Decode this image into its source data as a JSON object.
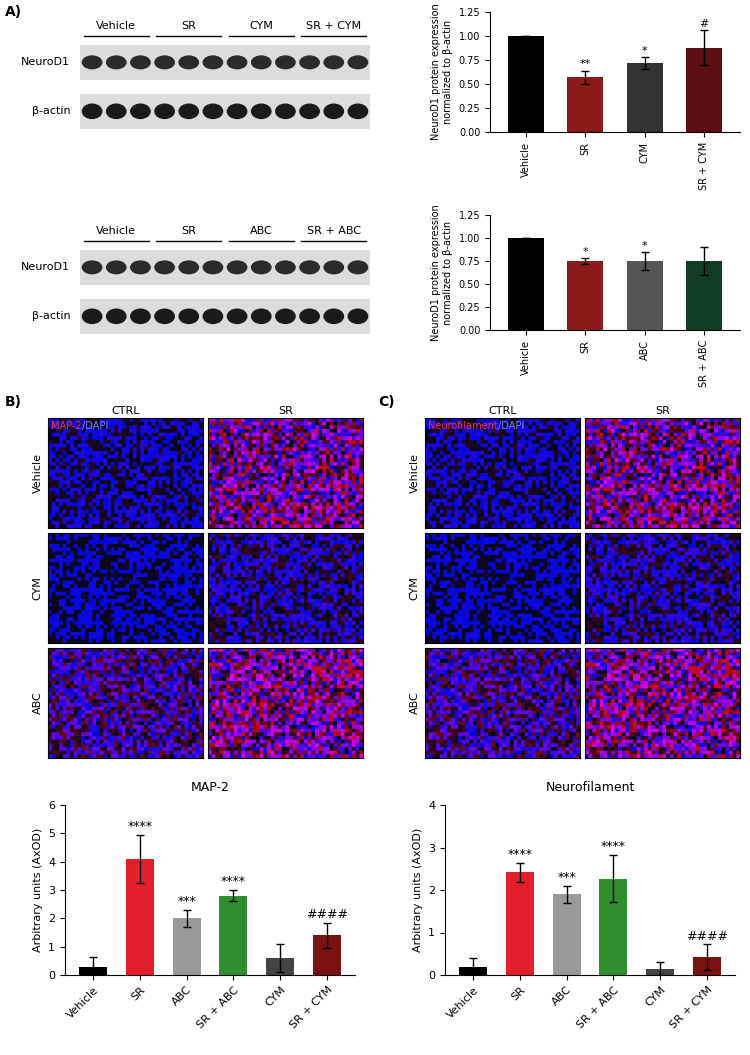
{
  "panels": {
    "A": {
      "label": "A)",
      "blots": [
        {
          "groups": [
            "Vehicle",
            "SR",
            "CYM",
            "SR + CYM"
          ],
          "rows": [
            "NeuroD1",
            "β-actin"
          ]
        },
        {
          "groups": [
            "Vehicle",
            "SR",
            "ABC",
            "SR + ABC"
          ],
          "rows": [
            "NeuroD1",
            "β-actin"
          ]
        }
      ]
    },
    "B": {
      "label": "B)",
      "stain": [
        "MAP-2",
        "/DAPI"
      ],
      "columns": [
        "CTRL",
        "SR"
      ],
      "rows": [
        "Vehicle",
        "CYM",
        "ABC"
      ]
    },
    "C": {
      "label": "C)",
      "stain": [
        "Neurofilament",
        "/DAPI"
      ],
      "columns": [
        "CTRL",
        "SR"
      ],
      "rows": [
        "Vehicle",
        "CYM",
        "ABC"
      ]
    }
  },
  "chart_data": [
    {
      "type": "bar",
      "ylabel": "NeuroD1 protein expression\nnormalized to β-actin",
      "categories": [
        "Vehicle",
        "SR",
        "CYM",
        "SR + CYM"
      ],
      "values": [
        1.0,
        0.57,
        0.72,
        0.88
      ],
      "errors": [
        0,
        0.07,
        0.06,
        0.18
      ],
      "colors": [
        "#000000",
        "#8b1a1a",
        "#333333",
        "#5c0f12"
      ],
      "annotations": [
        null,
        "**",
        "*",
        "#"
      ],
      "ylim": [
        0,
        1.25
      ],
      "yticks": [
        {
          "value": 0,
          "label": "0.00"
        },
        {
          "value": 0.25,
          "label": "0.25"
        },
        {
          "value": 0.5,
          "label": "0.50"
        },
        {
          "value": 0.75,
          "label": "0.75"
        },
        {
          "value": 1.0,
          "label": "1.00"
        },
        {
          "value": 1.25,
          "label": "1.25"
        }
      ]
    },
    {
      "type": "bar",
      "ylabel": "NeuroD1 protein expression\nnormalized to β-actin",
      "categories": [
        "Vehicle",
        "SR",
        "ABC",
        "SR + ABC"
      ],
      "values": [
        1.0,
        0.75,
        0.75,
        0.75
      ],
      "errors": [
        0,
        0.03,
        0.1,
        0.15
      ],
      "colors": [
        "#000000",
        "#8b1a1a",
        "#555555",
        "#123d22"
      ],
      "annotations": [
        null,
        "*",
        "*",
        null
      ],
      "ylim": [
        0,
        1.25
      ],
      "yticks": [
        {
          "value": 0,
          "label": "0.00"
        },
        {
          "value": 0.25,
          "label": "0.25"
        },
        {
          "value": 0.5,
          "label": "0.50"
        },
        {
          "value": 0.75,
          "label": "0.75"
        },
        {
          "value": 1.0,
          "label": "1.00"
        },
        {
          "value": 1.25,
          "label": "1.25"
        }
      ]
    },
    {
      "type": "bar",
      "title": "MAP-2",
      "ylabel": "Arbitrary units (AxOD)",
      "categories": [
        "Vehicle",
        "SR",
        "ABC",
        "SR + ABC",
        "CYM",
        "SR + CYM"
      ],
      "values": [
        0.3,
        4.1,
        2.0,
        2.8,
        0.6,
        1.4
      ],
      "errors": [
        0.35,
        0.85,
        0.3,
        0.2,
        0.5,
        0.45
      ],
      "colors": [
        "#000000",
        "#e3202a",
        "#9a9a9a",
        "#2f8f2f",
        "#444444",
        "#7b1212"
      ],
      "annotations": [
        null,
        "****",
        "***",
        "****",
        null,
        "####"
      ],
      "ylim": [
        0,
        6
      ],
      "yticks": [
        0,
        1,
        2,
        3,
        4,
        5,
        6
      ]
    },
    {
      "type": "bar",
      "title": "Neurofilament",
      "ylabel": "Arbitrary units (AxOD)",
      "categories": [
        "Vehicle",
        "SR",
        "ABC",
        "SR + ABC",
        "CYM",
        "SR + CYM"
      ],
      "values": [
        0.2,
        2.42,
        1.9,
        2.27,
        0.15,
        0.42
      ],
      "errors": [
        0.2,
        0.22,
        0.2,
        0.55,
        0.15,
        0.3
      ],
      "colors": [
        "#000000",
        "#e3202a",
        "#9a9a9a",
        "#2f8f2f",
        "#444444",
        "#7b1212"
      ],
      "annotations": [
        null,
        "****",
        "***",
        "****",
        null,
        "####"
      ],
      "ylim": [
        0,
        4
      ],
      "yticks": [
        0,
        1,
        2,
        3,
        4
      ]
    }
  ]
}
